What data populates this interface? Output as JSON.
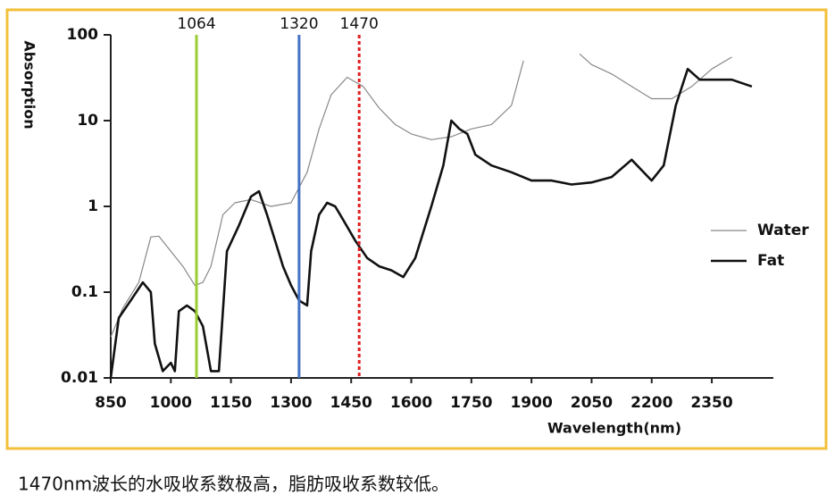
{
  "chart_data": {
    "type": "line",
    "ylabel": "Absorption",
    "xlabel": "Wavelength(nm)",
    "log_y": true,
    "legend": "right",
    "xlim": [
      850,
      2500
    ],
    "xticks": [
      850,
      1000,
      1150,
      1300,
      1450,
      1600,
      1750,
      1900,
      2050,
      2200,
      2350
    ],
    "ylim": [
      0.01,
      100
    ],
    "yticks": [
      0.01,
      0.1,
      1,
      10,
      100
    ],
    "markers": [
      {
        "x": 1064,
        "color": "#9acd32",
        "dashed": false
      },
      {
        "x": 1320,
        "color": "#4472c4",
        "dashed": false
      },
      {
        "x": 1470,
        "color": "#e02020",
        "dashed": true
      }
    ],
    "series": [
      {
        "name": "Water",
        "color": "#888888",
        "width": 1.2,
        "x": [
          850,
          880,
          920,
          950,
          970,
          1000,
          1030,
          1060,
          1080,
          1100,
          1130,
          1160,
          1200,
          1250,
          1300,
          1340,
          1370,
          1400,
          1440,
          1480,
          1520,
          1560,
          1600,
          1650,
          1700,
          1750,
          1800,
          1850,
          1880,
          null,
          2020,
          2050,
          2100,
          2150,
          2200,
          2250,
          2300,
          2350,
          2400
        ],
        "values": [
          0.03,
          0.065,
          0.13,
          0.44,
          0.45,
          0.3,
          0.2,
          0.12,
          0.13,
          0.2,
          0.8,
          1.1,
          1.2,
          1.0,
          1.1,
          2.5,
          8,
          20,
          32,
          25,
          14,
          9,
          7,
          6,
          6.5,
          8,
          9,
          15,
          50,
          null,
          60,
          45,
          35,
          25,
          18,
          18,
          25,
          40,
          55
        ]
      },
      {
        "name": "Fat",
        "color": "#111111",
        "width": 2.6,
        "x": [
          850,
          870,
          900,
          930,
          950,
          960,
          980,
          1000,
          1010,
          1020,
          1040,
          1060,
          1080,
          1100,
          1120,
          1140,
          1170,
          1200,
          1220,
          1240,
          1260,
          1280,
          1300,
          1320,
          1340,
          1350,
          1370,
          1390,
          1410,
          1430,
          1460,
          1490,
          1520,
          1550,
          1580,
          1610,
          1650,
          1680,
          1700,
          1720,
          1740,
          1760,
          1800,
          1850,
          1900,
          1950,
          2000,
          2050,
          2100,
          2150,
          2200,
          2230,
          2260,
          2290,
          2320,
          2350,
          2400,
          2450
        ],
        "values": [
          0.01,
          0.05,
          0.08,
          0.13,
          0.1,
          0.025,
          0.012,
          0.015,
          0.012,
          0.06,
          0.07,
          0.06,
          0.04,
          0.012,
          0.012,
          0.3,
          0.6,
          1.3,
          1.5,
          0.8,
          0.4,
          0.2,
          0.12,
          0.08,
          0.07,
          0.3,
          0.8,
          1.1,
          1.0,
          0.7,
          0.4,
          0.25,
          0.2,
          0.18,
          0.15,
          0.25,
          1.0,
          3,
          10,
          8,
          7,
          4,
          3,
          2.5,
          2,
          2.0,
          1.8,
          1.9,
          2.2,
          3.5,
          2.0,
          3,
          15,
          40,
          30,
          30,
          30,
          25
        ]
      }
    ]
  },
  "caption": "1470nm波长的水吸收系数极高，脂肪吸收系数较低。"
}
